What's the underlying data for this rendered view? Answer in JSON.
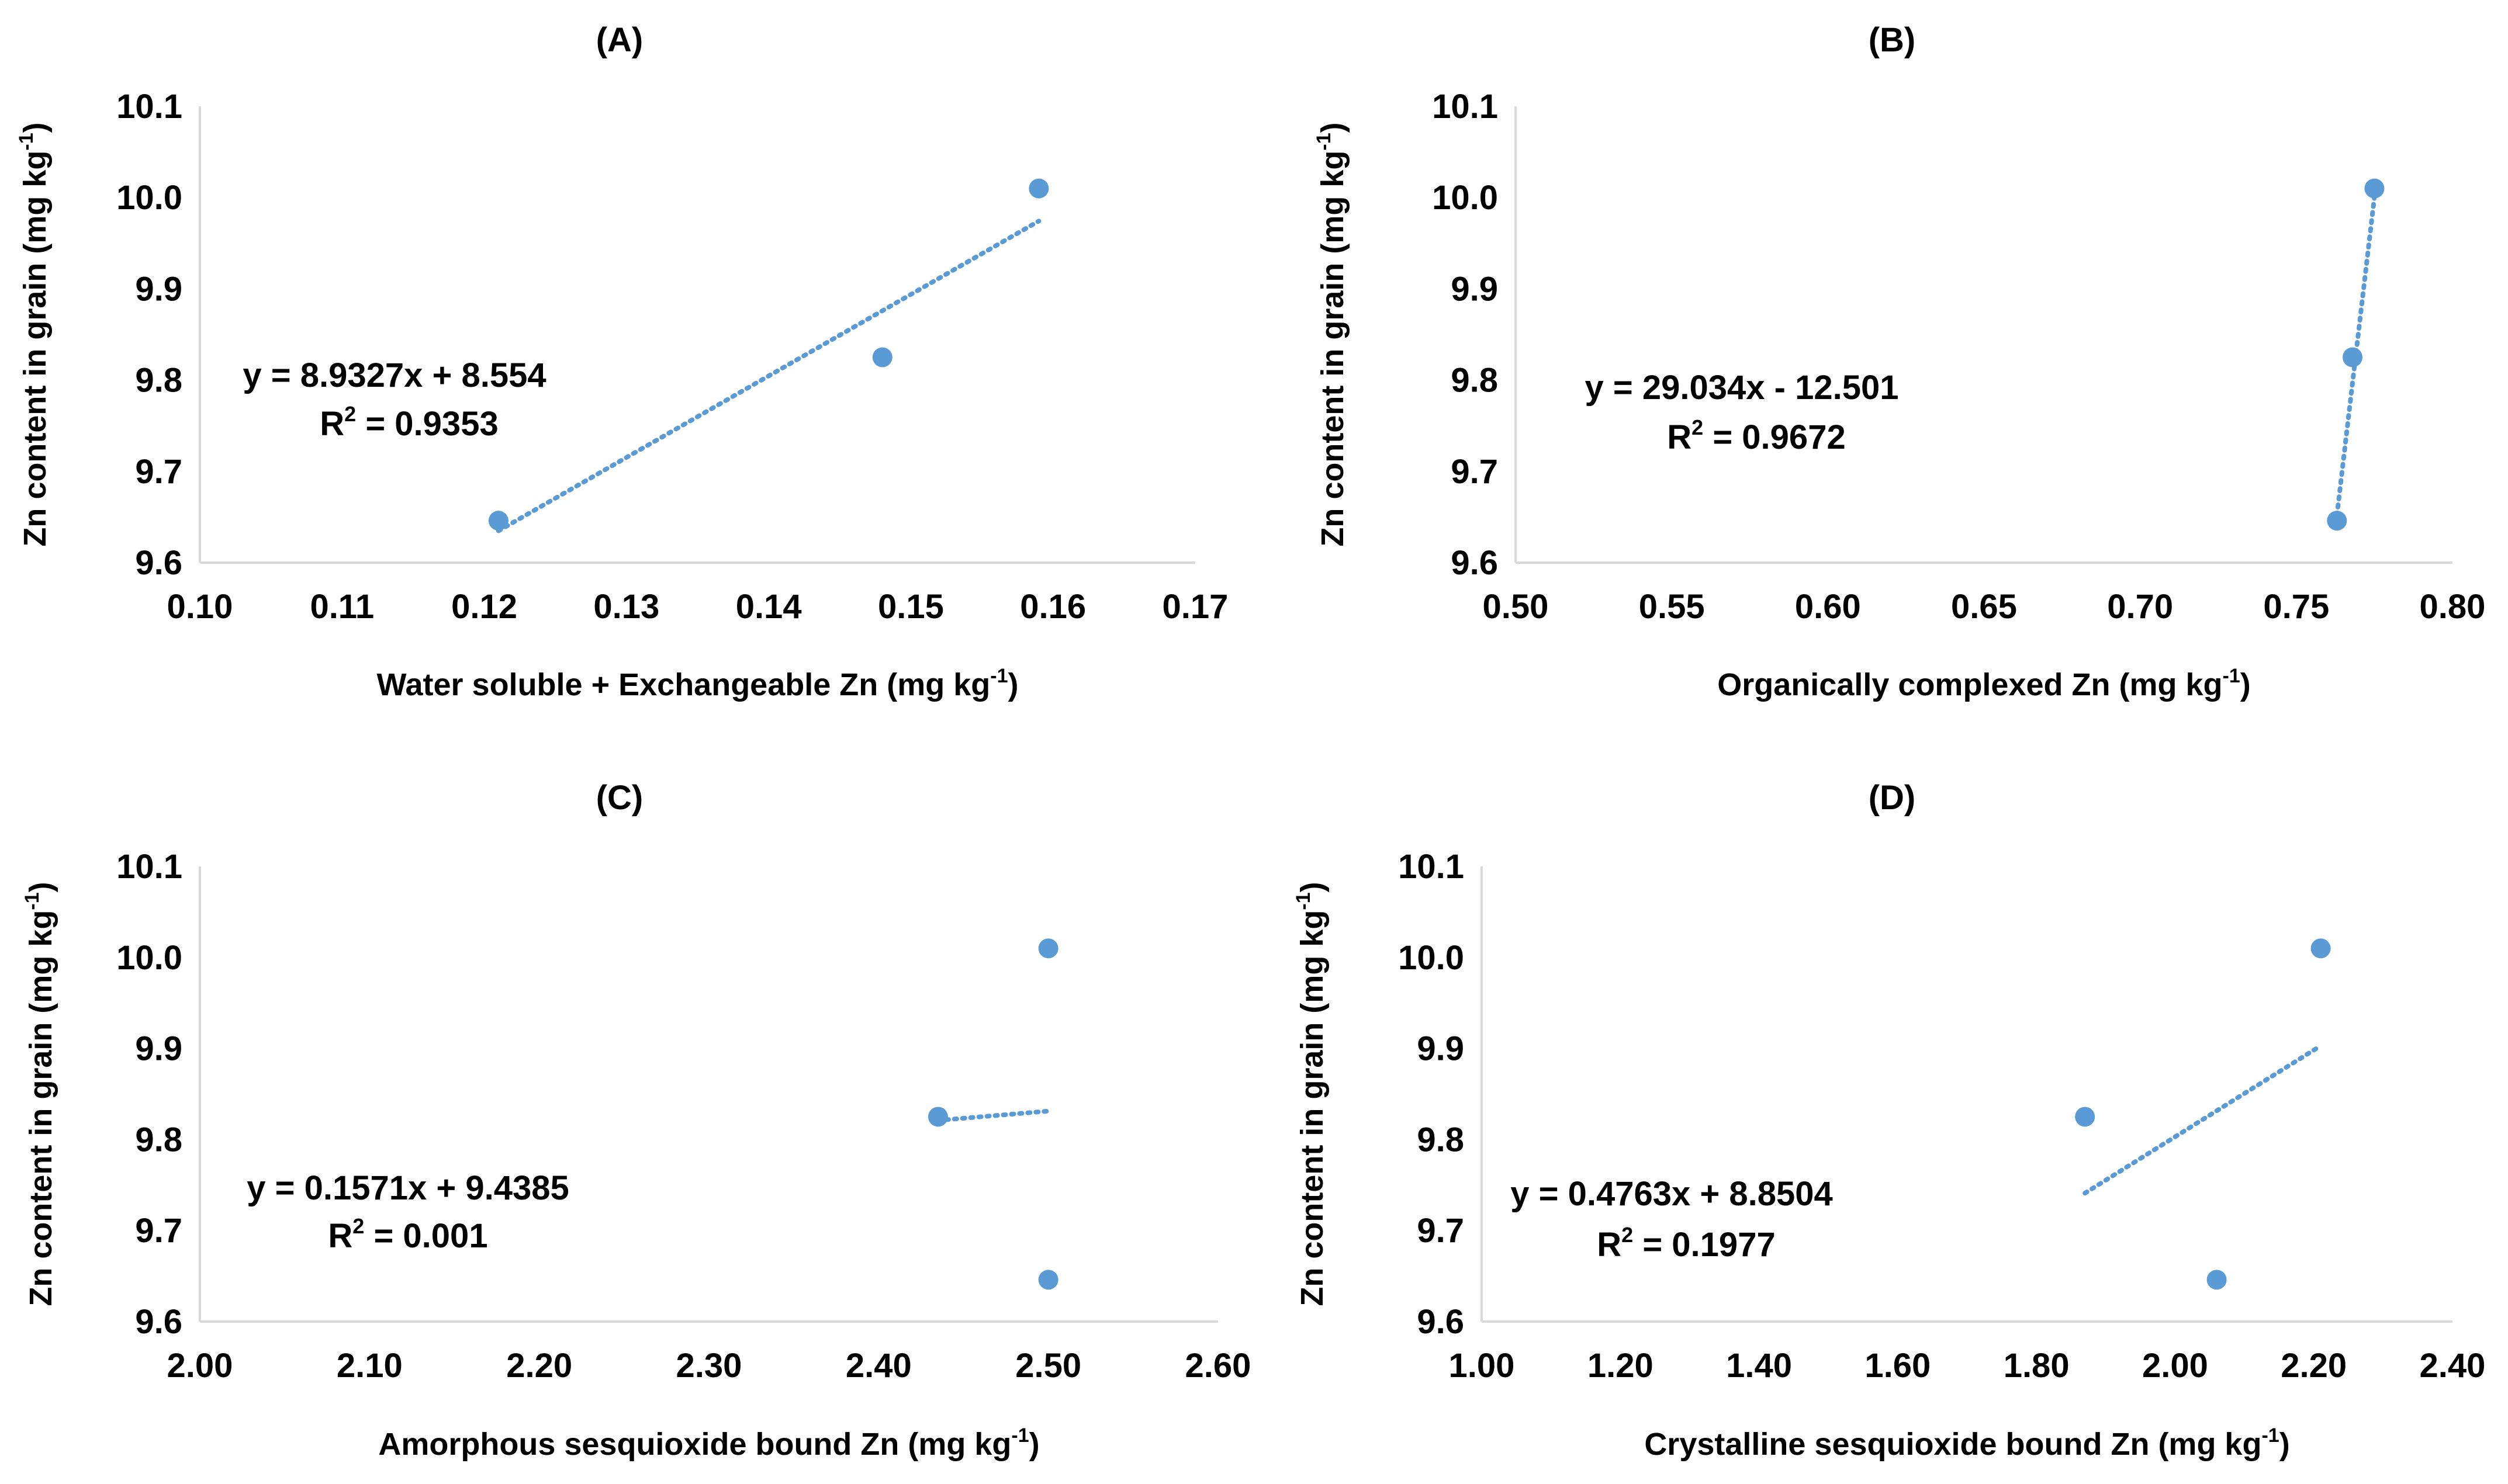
{
  "chart_data": [
    {
      "type": "scatter",
      "title": "(A)",
      "xlabel": "Water soluble + Exchangeable Zn (mg kg",
      "ylabel": "Zn content in grain (mg kg",
      "unit_superscript": "-1",
      "xlim": [
        0.1,
        0.17
      ],
      "ylim": [
        9.6,
        10.1
      ],
      "x_ticks": [
        "0.10",
        "0.11",
        "0.12",
        "0.13",
        "0.14",
        "0.15",
        "0.16",
        "0.17"
      ],
      "y_ticks": [
        "9.6",
        "9.7",
        "9.8",
        "9.9",
        "10.0",
        "10.1"
      ],
      "x": [
        0.121,
        0.148,
        0.159
      ],
      "y": [
        9.646,
        9.825,
        10.01
      ],
      "trendline": {
        "slope": 8.9327,
        "intercept": 8.554,
        "x_range": [
          0.121,
          0.159
        ]
      },
      "equation": "y = 8.9327x + 8.554",
      "r2_label": "R",
      "r2_sup": "2",
      "r2_value": " = 0.9353"
    },
    {
      "type": "scatter",
      "title": "(B)",
      "xlabel": "Organically complexed Zn (mg kg",
      "ylabel": "Zn content in grain (mg kg",
      "unit_superscript": "-1",
      "xlim": [
        0.5,
        0.8
      ],
      "ylim": [
        9.6,
        10.1
      ],
      "x_ticks": [
        "0.50",
        "0.55",
        "0.60",
        "0.65",
        "0.70",
        "0.75",
        "0.80"
      ],
      "y_ticks": [
        "9.6",
        "9.7",
        "9.8",
        "9.9",
        "10.0",
        "10.1"
      ],
      "x": [
        0.763,
        0.768,
        0.775
      ],
      "y": [
        9.646,
        9.825,
        10.01
      ],
      "trendline": {
        "slope": 29.034,
        "intercept": -12.501,
        "x_range": [
          0.763,
          0.775
        ]
      },
      "equation": "y = 29.034x - 12.501",
      "r2_label": "R",
      "r2_sup": "2",
      "r2_value": " = 0.9672"
    },
    {
      "type": "scatter",
      "title": "(C)",
      "xlabel": "Amorphous sesquioxide bound Zn (mg kg",
      "ylabel": "Zn content in grain (mg kg",
      "unit_superscript": "-1",
      "xlim": [
        2.0,
        2.6
      ],
      "ylim": [
        9.6,
        10.1
      ],
      "x_ticks": [
        "2.00",
        "2.10",
        "2.20",
        "2.30",
        "2.40",
        "2.50",
        "2.60"
      ],
      "y_ticks": [
        "9.6",
        "9.7",
        "9.8",
        "9.9",
        "10.0",
        "10.1"
      ],
      "x": [
        2.5,
        2.435,
        2.5
      ],
      "y": [
        9.646,
        9.825,
        10.01
      ],
      "trendline": {
        "slope": 0.1571,
        "intercept": 9.4385,
        "x_range": [
          2.435,
          2.5
        ]
      },
      "equation": "y = 0.1571x + 9.4385",
      "r2_label": "R",
      "r2_sup": "2",
      "r2_value": " = 0.001"
    },
    {
      "type": "scatter",
      "title": "(D)",
      "xlabel": "Crystalline sesquioxide bound Zn (mg kg",
      "ylabel": "Zn content in grain (mg kg",
      "unit_superscript": "-1",
      "xlim": [
        1.0,
        2.4
      ],
      "ylim": [
        9.6,
        10.1
      ],
      "x_ticks": [
        "1.00",
        "1.20",
        "1.40",
        "1.60",
        "1.80",
        "2.00",
        "2.20",
        "2.40"
      ],
      "y_ticks": [
        "9.6",
        "9.7",
        "9.8",
        "9.9",
        "10.0",
        "10.1"
      ],
      "x": [
        2.06,
        1.87,
        2.21
      ],
      "y": [
        9.646,
        9.825,
        10.01
      ],
      "trendline": {
        "slope": 0.4763,
        "intercept": 8.8504,
        "x_range": [
          1.87,
          2.21
        ]
      },
      "equation": "y = 0.4763x + 8.8504",
      "r2_label": "R",
      "r2_sup": "2",
      "r2_value": " = 0.1977"
    }
  ],
  "colors": {
    "marker": "#5b9bd5",
    "axis": "#d9d9d9"
  }
}
